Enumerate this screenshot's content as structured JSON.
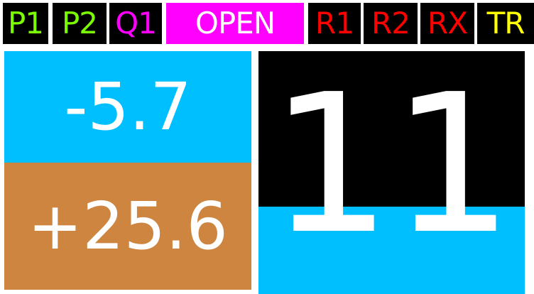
{
  "status_tabs": [
    {
      "label": "P1",
      "color": "#7cfc00",
      "background": "#000000"
    },
    {
      "label": "P2",
      "color": "#7cfc00",
      "background": "#000000"
    },
    {
      "label": "Q1",
      "color": "#ff00ff",
      "background": "#000000"
    },
    {
      "label": "OPEN",
      "color": "#ffffff",
      "background": "#ff00ff"
    },
    {
      "label": "R1",
      "color": "#ff0000",
      "background": "#000000"
    },
    {
      "label": "R2",
      "color": "#ff0000",
      "background": "#000000"
    },
    {
      "label": "RX",
      "color": "#ff0000",
      "background": "#000000"
    },
    {
      "label": "TR",
      "color": "#ffff00",
      "background": "#000000"
    }
  ],
  "left_panel": {
    "top_value": "-5.7",
    "top_color": "#00bfff",
    "bottom_value": "+25.6",
    "bottom_color": "#cd853f"
  },
  "right_panel": {
    "value": "11",
    "background": "#000000",
    "fill_color": "#00bfff",
    "fill_fraction": 0.36
  }
}
